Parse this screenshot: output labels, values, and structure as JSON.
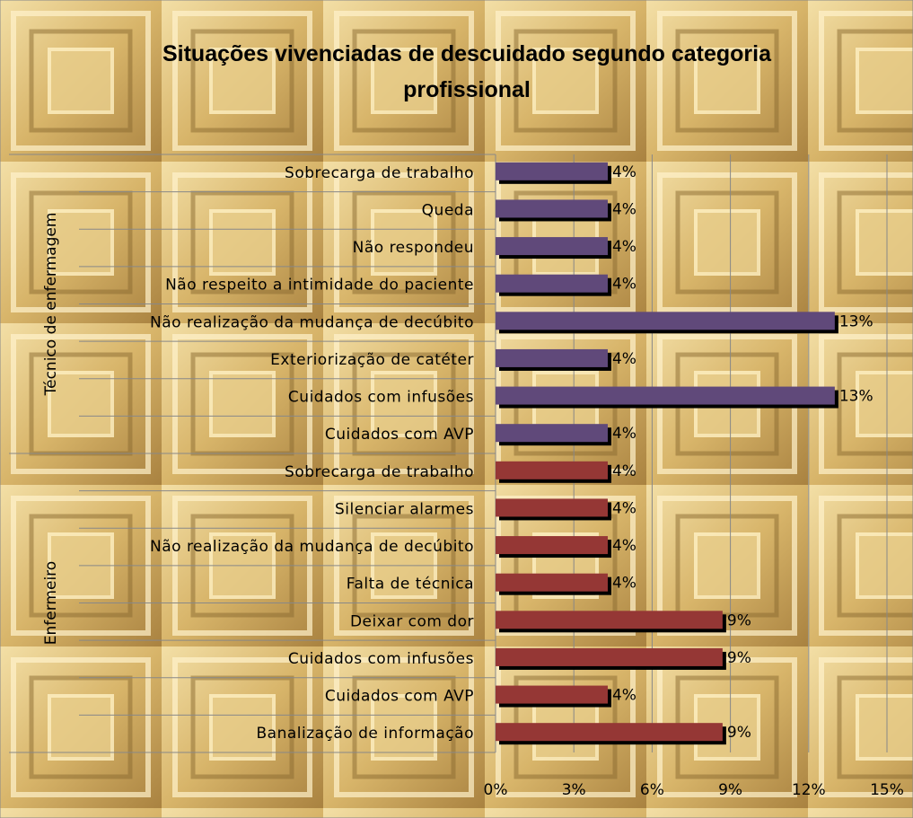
{
  "chart_data": {
    "type": "bar",
    "orientation": "horizontal",
    "title": "Situações vivenciadas de descuidado segundo categoria profissional",
    "series": [
      {
        "name": "Técnico de enfermagem",
        "color": "#60497a",
        "categories": [
          "Sobrecarga de trabalho",
          "Queda",
          "Não respondeu",
          "Não respeito a intimidade do paciente",
          "Não realização da mudança de decúbito",
          "Exteriorização de catéter",
          "Cuidados com infusões",
          "Cuidados com AVP"
        ],
        "values": [
          4.3,
          4.3,
          4.3,
          4.3,
          13.0,
          4.3,
          13.0,
          4.3
        ],
        "value_labels": [
          "4%",
          "4%",
          "4%",
          "4%",
          "13%",
          "4%",
          "13%",
          "4%"
        ]
      },
      {
        "name": "Enfermeiro",
        "color": "#953735",
        "categories": [
          "Sobrecarga de trabalho",
          "Silenciar alarmes",
          "Não realização da mudança de decúbito",
          "Falta de técnica",
          "Deixar com dor",
          "Cuidados com infusões",
          "Cuidados com AVP",
          "Banalização de informação"
        ],
        "values": [
          4.3,
          4.3,
          4.3,
          4.3,
          8.7,
          8.7,
          4.3,
          8.7
        ],
        "value_labels": [
          "4%",
          "4%",
          "4%",
          "4%",
          "9%",
          "9%",
          "4%",
          "9%"
        ]
      }
    ],
    "xlim": [
      0,
      15
    ],
    "xticks": [
      {
        "value": 0,
        "label": "0%"
      },
      {
        "value": 3,
        "label": "3%"
      },
      {
        "value": 6,
        "label": "6%"
      },
      {
        "value": 9,
        "label": "9%"
      },
      {
        "value": 12,
        "label": "12%"
      },
      {
        "value": 15,
        "label": "15%"
      }
    ],
    "grid": true
  }
}
